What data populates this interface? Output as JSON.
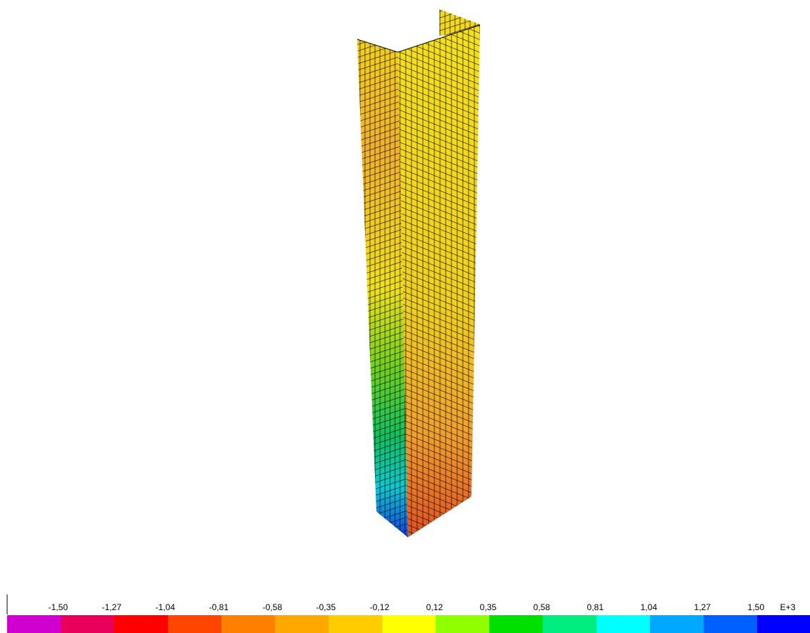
{
  "legend": {
    "labels": [
      "-1,50",
      "-1,27",
      "-1,04",
      "-0,81",
      "-0,58",
      "-0,35",
      "-0,12",
      "0,12",
      "0,35",
      "0,58",
      "0,81",
      "1,04",
      "1,27",
      "1,50"
    ],
    "exponent": "E+3",
    "colors": [
      "#d000d0",
      "#e8005a",
      "#ff0000",
      "#ff4500",
      "#ff8000",
      "#ffa800",
      "#ffcc00",
      "#ffff00",
      "#90ff00",
      "#00e000",
      "#00ee80",
      "#00ffff",
      "#00a8ff",
      "#0060ff",
      "#0000ff"
    ]
  }
}
